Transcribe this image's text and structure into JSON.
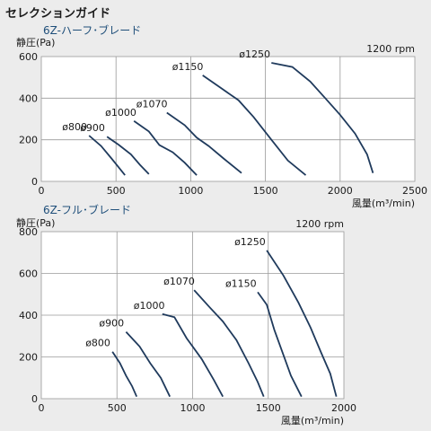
{
  "title": "セレクションガイド",
  "chart_data": [
    {
      "type": "line",
      "subtitle": "6Z-ハーフ･ブレード",
      "ylabel": "静圧(Pa)",
      "xlabel": "風量(m³/min)",
      "speed": "1200 rpm",
      "xlim": [
        0,
        2500
      ],
      "ylim": [
        0,
        600
      ],
      "xticks": [
        0,
        500,
        1000,
        1500,
        2000,
        2500
      ],
      "yticks": [
        0,
        200,
        400,
        600
      ],
      "grid": true,
      "series": [
        {
          "name": "ø800",
          "points": [
            [
              320,
              220
            ],
            [
              400,
              170
            ],
            [
              470,
              110
            ],
            [
              560,
              30
            ]
          ]
        },
        {
          "name": "ø900",
          "points": [
            [
              440,
              215
            ],
            [
              520,
              175
            ],
            [
              600,
              130
            ],
            [
              660,
              80
            ],
            [
              720,
              35
            ]
          ]
        },
        {
          "name": "ø1000",
          "points": [
            [
              620,
              290
            ],
            [
              720,
              240
            ],
            [
              790,
              175
            ],
            [
              880,
              140
            ],
            [
              960,
              90
            ],
            [
              1040,
              30
            ]
          ]
        },
        {
          "name": "ø1070",
          "points": [
            [
              840,
              330
            ],
            [
              960,
              270
            ],
            [
              1040,
              210
            ],
            [
              1120,
              170
            ],
            [
              1220,
              110
            ],
            [
              1340,
              40
            ]
          ]
        },
        {
          "name": "ø1150",
          "points": [
            [
              1080,
              510
            ],
            [
              1200,
              450
            ],
            [
              1320,
              390
            ],
            [
              1420,
              310
            ],
            [
              1540,
              200
            ],
            [
              1650,
              100
            ],
            [
              1770,
              30
            ]
          ]
        },
        {
          "name": "ø1250",
          "points": [
            [
              1540,
              570
            ],
            [
              1680,
              550
            ],
            [
              1800,
              480
            ],
            [
              1900,
              400
            ],
            [
              2000,
              320
            ],
            [
              2100,
              230
            ],
            [
              2180,
              130
            ],
            [
              2220,
              40
            ]
          ]
        }
      ]
    },
    {
      "type": "line",
      "subtitle": "6Z-フル･ブレード",
      "ylabel": "静圧(Pa)",
      "xlabel": "風量(m³/min)",
      "speed": "1200 rpm",
      "xlim": [
        0,
        2000
      ],
      "ylim": [
        0,
        800
      ],
      "xticks": [
        0,
        500,
        1000,
        1500,
        2000
      ],
      "yticks": [
        0,
        200,
        400,
        600,
        800
      ],
      "grid": true,
      "series": [
        {
          "name": "ø800",
          "points": [
            [
              470,
              225
            ],
            [
              520,
              170
            ],
            [
              560,
              110
            ],
            [
              600,
              60
            ],
            [
              630,
              10
            ]
          ]
        },
        {
          "name": "ø900",
          "points": [
            [
              560,
              320
            ],
            [
              650,
              250
            ],
            [
              720,
              170
            ],
            [
              790,
              100
            ],
            [
              850,
              10
            ]
          ]
        },
        {
          "name": "ø1000",
          "points": [
            [
              800,
              405
            ],
            [
              880,
              390
            ],
            [
              960,
              290
            ],
            [
              1060,
              190
            ],
            [
              1140,
              90
            ],
            [
              1200,
              10
            ]
          ]
        },
        {
          "name": "ø1070",
          "points": [
            [
              1010,
              520
            ],
            [
              1110,
              440
            ],
            [
              1200,
              370
            ],
            [
              1290,
              280
            ],
            [
              1370,
              170
            ],
            [
              1430,
              80
            ],
            [
              1470,
              10
            ]
          ]
        },
        {
          "name": "ø1150",
          "points": [
            [
              1430,
              510
            ],
            [
              1490,
              450
            ],
            [
              1540,
              330
            ],
            [
              1600,
              210
            ],
            [
              1650,
              110
            ],
            [
              1720,
              10
            ]
          ]
        },
        {
          "name": "ø1250",
          "points": [
            [
              1490,
              710
            ],
            [
              1600,
              590
            ],
            [
              1700,
              460
            ],
            [
              1780,
              340
            ],
            [
              1850,
              220
            ],
            [
              1910,
              120
            ],
            [
              1950,
              10
            ]
          ]
        }
      ]
    }
  ]
}
